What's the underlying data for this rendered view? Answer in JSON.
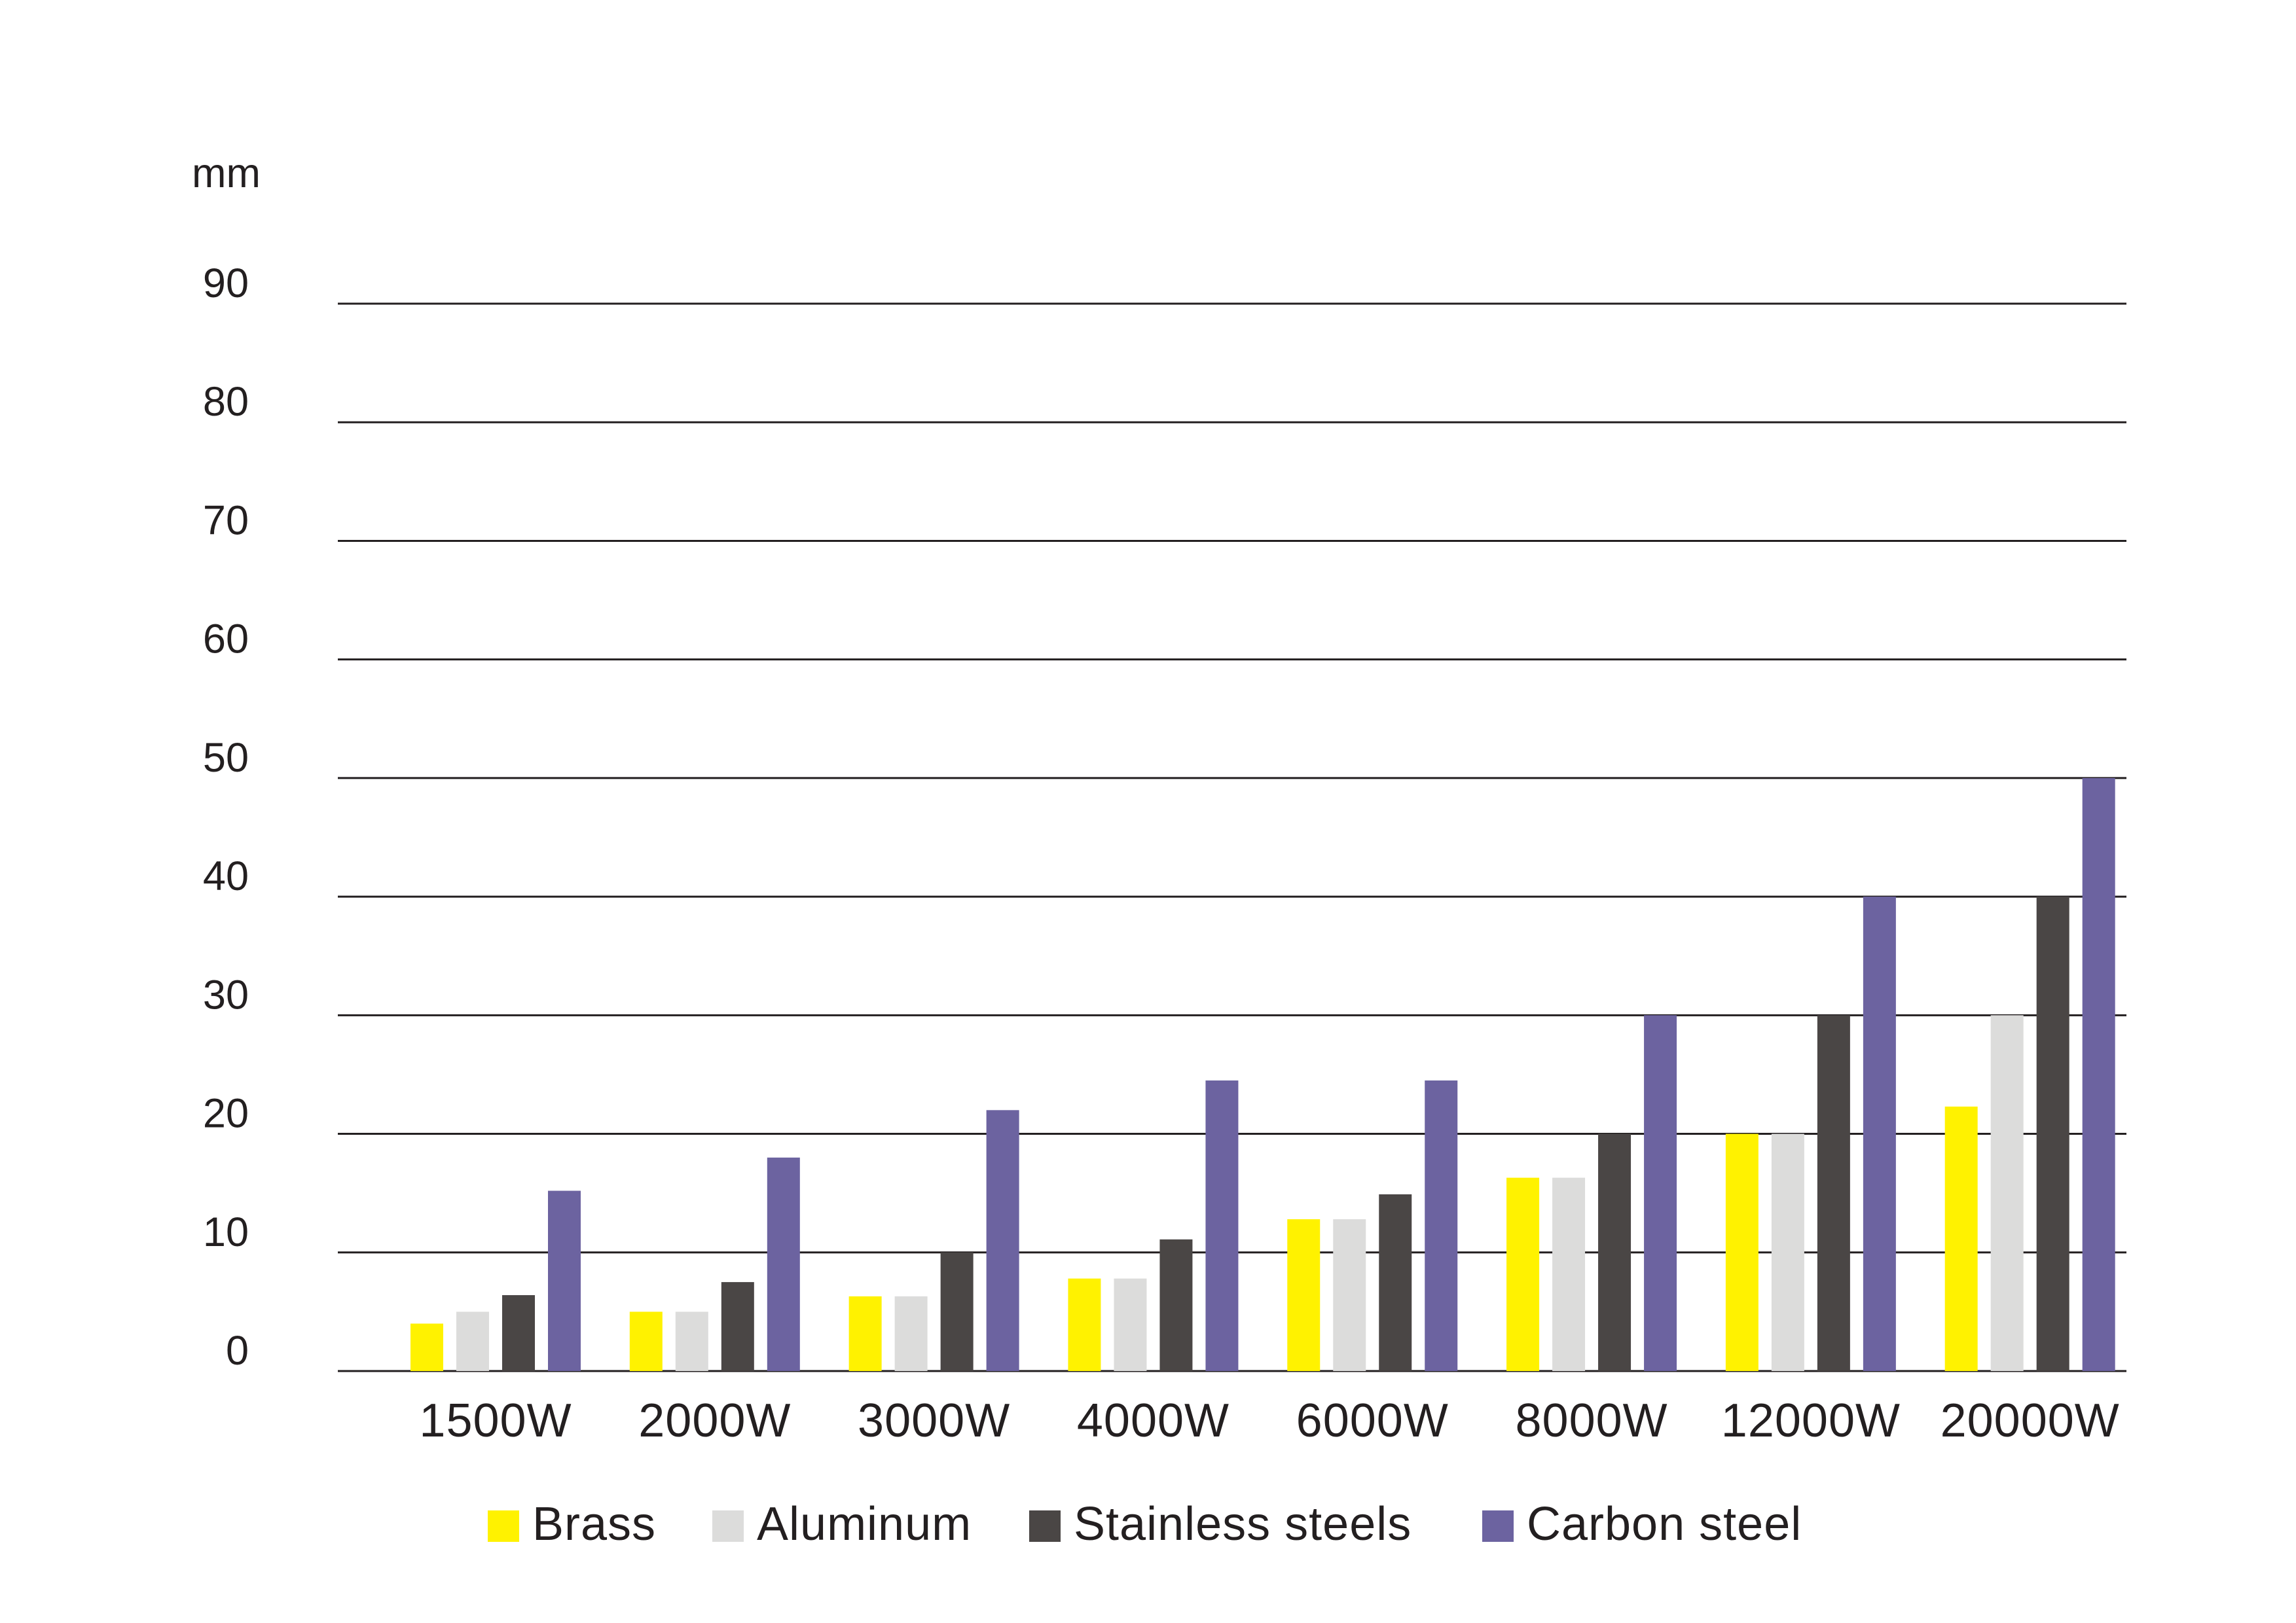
{
  "chart_data": {
    "type": "bar",
    "ylabel": "mm",
    "xlabel": "",
    "ylim": [
      0,
      90
    ],
    "yticks": [
      0,
      10,
      20,
      30,
      40,
      50,
      60,
      70,
      80,
      90
    ],
    "grid": true,
    "legend_position": "bottom",
    "categories": [
      "1500W",
      "2000W",
      "3000W",
      "4000W",
      "6000W",
      "8000W",
      "12000W",
      "20000W"
    ],
    "series": [
      {
        "name": "Brass",
        "color": "#fff200",
        "values": [
          4,
          5,
          6.3,
          7.8,
          12.8,
          16.3,
          20,
          22.3
        ]
      },
      {
        "name": "Aluminum",
        "color": "#dcdcdb",
        "values": [
          5,
          5,
          6.3,
          7.8,
          12.8,
          16.3,
          20,
          30
        ]
      },
      {
        "name": "Stainless steels",
        "color": "#4a4645",
        "values": [
          6.4,
          7.5,
          10,
          11.1,
          14.9,
          20,
          30,
          40
        ]
      },
      {
        "name": "Carbon steel",
        "color": "#6c63a0",
        "values": [
          15.2,
          18,
          22,
          24.5,
          24.5,
          30,
          40,
          50
        ]
      }
    ]
  }
}
